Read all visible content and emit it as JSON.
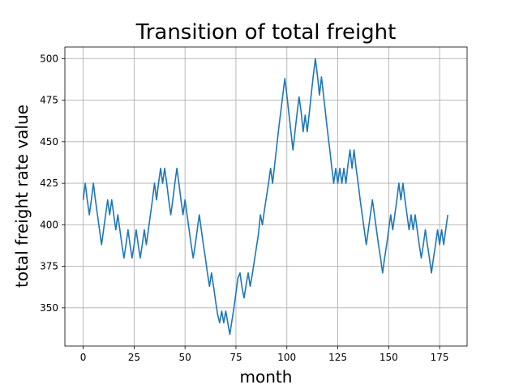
{
  "chart_data": {
    "type": "line",
    "title": "Transition of total freight",
    "xlabel": "month",
    "ylabel": "total freight rate value",
    "xlim": [
      -9,
      188.5
    ],
    "ylim": [
      327,
      507
    ],
    "xticks": [
      0,
      25,
      50,
      75,
      100,
      125,
      150,
      175
    ],
    "yticks": [
      350,
      375,
      400,
      425,
      450,
      475,
      500
    ],
    "grid": true,
    "series": [
      {
        "color": "#1f77b4",
        "x": [
          0,
          1,
          2,
          3,
          4,
          5,
          6,
          7,
          8,
          9,
          10,
          11,
          12,
          13,
          14,
          15,
          16,
          17,
          18,
          19,
          20,
          21,
          22,
          23,
          24,
          25,
          26,
          27,
          28,
          29,
          30,
          31,
          32,
          33,
          34,
          35,
          36,
          37,
          38,
          39,
          40,
          41,
          42,
          43,
          44,
          45,
          46,
          47,
          48,
          49,
          50,
          51,
          52,
          53,
          54,
          55,
          56,
          57,
          58,
          59,
          60,
          61,
          62,
          63,
          64,
          65,
          66,
          67,
          68,
          69,
          70,
          71,
          72,
          73,
          74,
          75,
          76,
          77,
          78,
          79,
          80,
          81,
          82,
          83,
          84,
          85,
          86,
          87,
          88,
          89,
          90,
          91,
          92,
          93,
          94,
          95,
          96,
          97,
          98,
          99,
          100,
          101,
          102,
          103,
          104,
          105,
          106,
          107,
          108,
          109,
          110,
          111,
          112,
          113,
          114,
          115,
          116,
          117,
          118,
          119,
          120,
          121,
          122,
          123,
          124,
          125,
          126,
          127,
          128,
          129,
          130,
          131,
          132,
          133,
          134,
          135,
          136,
          137,
          138,
          139,
          140,
          141,
          142,
          143,
          144,
          145,
          146,
          147,
          148,
          149,
          150,
          151,
          152,
          153,
          154,
          155,
          156,
          157,
          158,
          159,
          160,
          161,
          162,
          163,
          164,
          165,
          166,
          167,
          168,
          169,
          170,
          171,
          172,
          173,
          174,
          175,
          176,
          177,
          178,
          179
        ],
        "y": [
          415,
          425,
          415,
          406,
          415,
          425,
          415,
          406,
          397,
          388,
          397,
          406,
          415,
          406,
          415,
          406,
          397,
          406,
          397,
          388,
          380,
          388,
          397,
          388,
          380,
          388,
          397,
          388,
          380,
          388,
          397,
          388,
          397,
          406,
          415,
          425,
          415,
          425,
          434,
          425,
          434,
          425,
          415,
          406,
          415,
          425,
          434,
          425,
          415,
          406,
          415,
          406,
          397,
          388,
          380,
          388,
          397,
          406,
          397,
          388,
          380,
          371,
          363,
          371,
          363,
          354,
          346,
          341,
          348,
          341,
          348,
          341,
          334,
          342,
          350,
          359,
          368,
          371,
          362,
          356,
          364,
          371,
          363,
          370,
          378,
          386,
          394,
          406,
          400,
          409,
          417,
          425,
          434,
          425,
          436,
          447,
          458,
          468,
          478,
          488,
          478,
          467,
          456,
          445,
          456,
          467,
          477,
          468,
          456,
          466,
          456,
          467,
          479,
          490,
          500,
          490,
          478,
          489,
          478,
          467,
          456,
          446,
          435,
          425,
          434,
          425,
          434,
          425,
          434,
          425,
          436,
          445,
          434,
          445,
          434,
          425,
          415,
          406,
          397,
          388,
          397,
          406,
          415,
          406,
          397,
          388,
          380,
          371,
          380,
          388,
          397,
          406,
          397,
          406,
          415,
          425,
          415,
          425,
          415,
          406,
          397,
          406,
          397,
          406,
          397,
          388,
          380,
          388,
          397,
          388,
          380,
          371,
          380,
          388,
          397,
          388,
          397,
          388,
          397,
          406
        ]
      }
    ]
  }
}
